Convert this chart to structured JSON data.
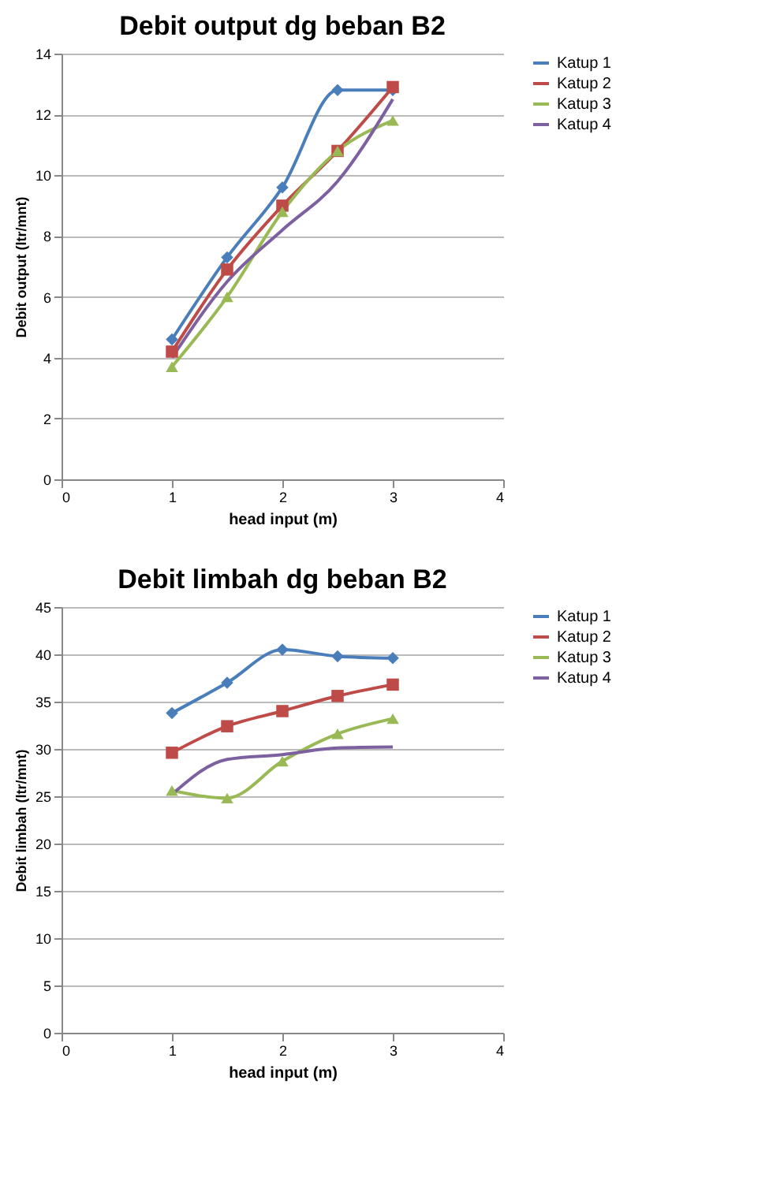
{
  "chart_data": [
    {
      "type": "line",
      "title": "Debit output dg beban B2",
      "xlabel": "head input (m)",
      "ylabel": "Debit output (ltr/mnt)",
      "x": [
        1,
        1.5,
        2,
        2.5,
        3
      ],
      "xlim": [
        0,
        4
      ],
      "xticks": [
        0,
        1,
        2,
        3,
        4
      ],
      "ylim": [
        0,
        14
      ],
      "yticks": [
        0,
        2,
        4,
        6,
        8,
        10,
        12,
        14
      ],
      "grid": "y",
      "legend": "right",
      "line_style": "solid",
      "series": [
        {
          "name": "Katup 1",
          "color": "#4a7ebb",
          "marker": "diamond",
          "values": [
            4.6,
            7.3,
            9.6,
            12.8,
            12.8
          ]
        },
        {
          "name": "Katup 2",
          "color": "#be4b48",
          "marker": "square",
          "values": [
            4.2,
            6.9,
            9.0,
            10.8,
            12.9
          ]
        },
        {
          "name": "Katup 3",
          "color": "#98b954",
          "marker": "triangle",
          "values": [
            3.7,
            6.0,
            8.8,
            10.8,
            11.8
          ]
        },
        {
          "name": "Katup 4",
          "color": "#7d60a0",
          "marker": "none",
          "values": [
            4.0,
            6.5,
            8.2,
            9.8,
            12.5
          ]
        }
      ]
    },
    {
      "type": "line",
      "title": "Debit limbah dg beban B2",
      "xlabel": "head input (m)",
      "ylabel": "Debit limbah (ltr/mnt)",
      "x": [
        1,
        1.5,
        2,
        2.5,
        3
      ],
      "xlim": [
        0,
        4
      ],
      "xticks": [
        0,
        1,
        2,
        3,
        4
      ],
      "ylim": [
        0,
        45
      ],
      "yticks": [
        0,
        5,
        10,
        15,
        20,
        25,
        30,
        35,
        40,
        45
      ],
      "grid": "y",
      "legend": "right",
      "line_style": "solid",
      "series": [
        {
          "name": "Katup 1",
          "color": "#4a7ebb",
          "marker": "diamond",
          "values": [
            33.8,
            37.0,
            40.5,
            39.8,
            39.6
          ]
        },
        {
          "name": "Katup 2",
          "color": "#be4b48",
          "marker": "square",
          "values": [
            29.6,
            32.4,
            34.0,
            35.6,
            36.8
          ]
        },
        {
          "name": "Katup 3",
          "color": "#98b954",
          "marker": "triangle",
          "values": [
            25.6,
            24.8,
            28.7,
            31.6,
            33.2
          ]
        },
        {
          "name": "Katup 4",
          "color": "#7d60a0",
          "marker": "none",
          "values": [
            25.2,
            28.9,
            29.4,
            30.1,
            30.2
          ]
        }
      ]
    }
  ]
}
